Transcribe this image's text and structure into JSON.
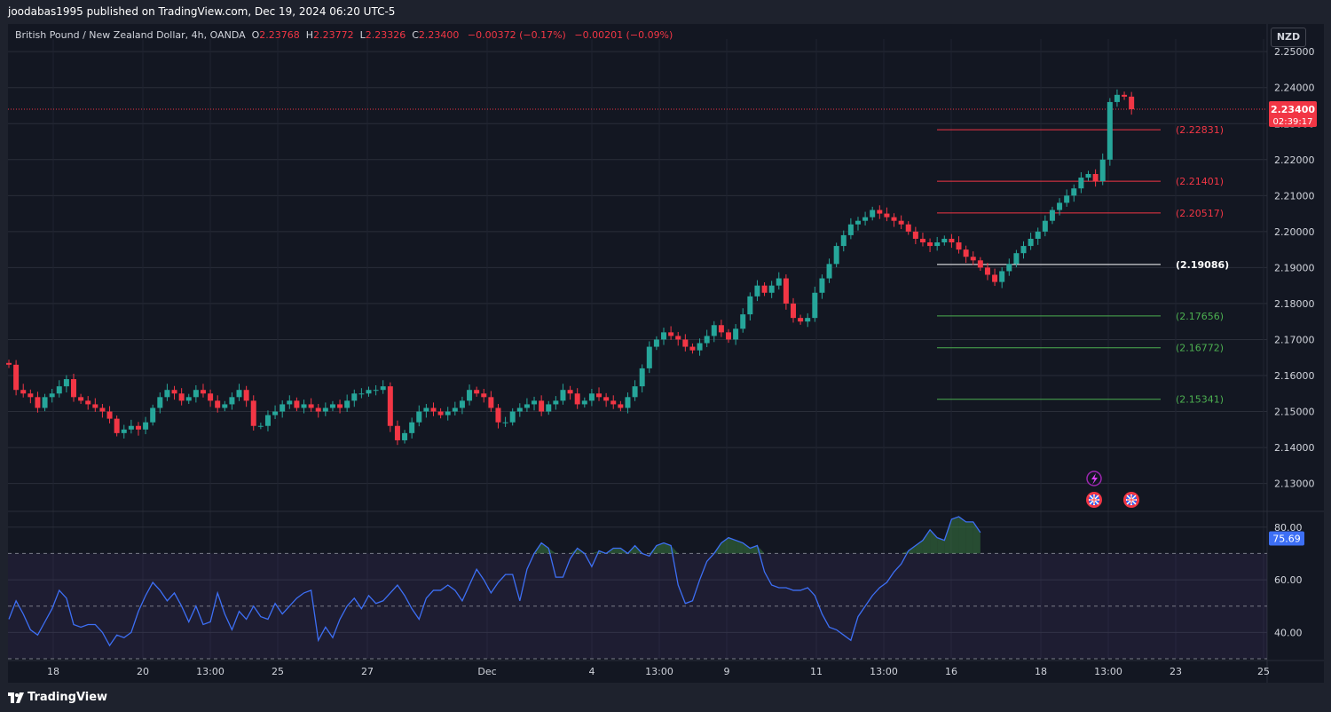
{
  "header": {
    "published_text": "joodabas1995 published on TradingView.com, Dec 19, 2024 06:20 UTC-5"
  },
  "symbol": {
    "name": "British Pound / New Zealand Dollar, 4h, OANDA",
    "open_label": "O",
    "open": "2.23768",
    "high_label": "H",
    "high": "2.23772",
    "low_label": "L",
    "low": "2.23326",
    "close_label": "C",
    "close": "2.23400",
    "change": "−0.00372 (−0.17%)",
    "change2": "−0.00201 (−0.09%)"
  },
  "currency_button": "NZD",
  "footer": {
    "brand": "TradingView"
  },
  "colors": {
    "up": "#26a69a",
    "down": "#f23645",
    "rsi_line": "#3d6ff5",
    "background": "#131722"
  },
  "chart_data": {
    "type": "candlestick",
    "price_axis": {
      "ticks": [
        "2.25000",
        "2.24000",
        "2.23000",
        "2.22000",
        "2.21000",
        "2.20000",
        "2.19000",
        "2.18000",
        "2.17000",
        "2.16000",
        "2.15000",
        "2.14000",
        "2.13000"
      ],
      "range": [
        2.1225,
        2.2535
      ]
    },
    "current_price": {
      "value": "2.23400",
      "countdown": "02:39:17"
    },
    "x_ticks": [
      "18",
      "20",
      "13:00",
      "25",
      "27",
      "Dec",
      "4",
      "13:00",
      "9",
      "11",
      "13:00",
      "16",
      "18",
      "13:00",
      "23",
      "25"
    ],
    "levels": [
      {
        "label": "(2.22831)",
        "value": 2.22831,
        "color": "#f23645"
      },
      {
        "label": "(2.21401)",
        "value": 2.21401,
        "color": "#f23645"
      },
      {
        "label": "(2.20517)",
        "value": 2.20517,
        "color": "#f23645"
      },
      {
        "label": "(2.19086)",
        "value": 2.19086,
        "color": "#ffffff"
      },
      {
        "label": "(2.17656)",
        "value": 2.17656,
        "color": "#4caf50"
      },
      {
        "label": "(2.16772)",
        "value": 2.16772,
        "color": "#4caf50"
      },
      {
        "label": "(2.15341)",
        "value": 2.15341,
        "color": "#4caf50"
      }
    ],
    "close_series": [
      2.163,
      2.156,
      2.155,
      2.154,
      2.151,
      2.154,
      2.155,
      2.157,
      2.159,
      2.154,
      2.153,
      2.152,
      2.151,
      2.15,
      2.148,
      2.144,
      2.145,
      2.146,
      2.145,
      2.147,
      2.151,
      2.154,
      2.156,
      2.155,
      2.153,
      2.154,
      2.156,
      2.155,
      2.153,
      2.151,
      2.152,
      2.154,
      2.156,
      2.153,
      2.146,
      2.146,
      2.149,
      2.15,
      2.152,
      2.153,
      2.151,
      2.152,
      2.151,
      2.15,
      2.151,
      2.152,
      2.151,
      2.153,
      2.155,
      2.155,
      2.156,
      2.156,
      2.157,
      2.146,
      2.142,
      2.144,
      2.147,
      2.15,
      2.151,
      2.15,
      2.149,
      2.15,
      2.151,
      2.153,
      2.156,
      2.155,
      2.154,
      2.151,
      2.147,
      2.147,
      2.15,
      2.151,
      2.152,
      2.153,
      2.15,
      2.152,
      2.153,
      2.156,
      2.155,
      2.152,
      2.153,
      2.155,
      2.154,
      2.153,
      2.152,
      2.151,
      2.154,
      2.157,
      2.162,
      2.168,
      2.17,
      2.172,
      2.171,
      2.17,
      2.168,
      2.167,
      2.169,
      2.171,
      2.174,
      2.172,
      2.17,
      2.173,
      2.177,
      2.182,
      2.185,
      2.183,
      2.185,
      2.187,
      2.18,
      2.176,
      2.175,
      2.176,
      2.183,
      2.187,
      2.191,
      2.196,
      2.199,
      2.202,
      2.203,
      2.204,
      2.206,
      2.205,
      2.204,
      2.203,
      2.202,
      2.2,
      2.198,
      2.197,
      2.196,
      2.197,
      2.198,
      2.197,
      2.195,
      2.193,
      2.192,
      2.19,
      2.188,
      2.186,
      2.189,
      2.191,
      2.194,
      2.196,
      2.198,
      2.2,
      2.203,
      2.206,
      2.208,
      2.21,
      2.212,
      2.215,
      2.216,
      2.214,
      2.22,
      2.236,
      2.238,
      2.2375,
      2.234
    ],
    "rsi": {
      "current": "75.69",
      "ticks": [
        "80.00",
        "60.00",
        "40.00"
      ],
      "range": [
        30,
        86
      ],
      "band": [
        30,
        70
      ],
      "values": [
        45,
        52,
        47,
        41,
        39,
        44,
        49,
        56,
        53,
        43,
        42,
        43,
        43,
        40,
        35,
        39,
        38,
        40,
        48,
        54,
        59,
        56,
        52,
        55,
        50,
        44,
        50,
        43,
        44,
        55,
        47,
        41,
        48,
        45,
        50,
        46,
        45,
        51,
        47,
        50,
        53,
        55,
        56,
        37,
        42,
        38,
        45,
        50,
        53,
        49,
        54,
        51,
        52,
        55,
        58,
        54,
        49,
        45,
        53,
        56,
        56,
        58,
        56,
        52,
        58,
        64,
        60,
        55,
        59,
        62,
        62,
        52,
        64,
        70,
        74,
        72,
        61,
        61,
        68,
        72,
        70,
        65,
        71,
        70,
        72,
        72,
        70,
        73,
        70,
        69,
        73,
        74,
        73,
        58,
        51,
        52,
        60,
        67,
        70,
        74,
        76,
        75,
        74,
        72,
        73,
        63,
        58,
        57,
        57,
        56,
        56,
        57,
        54,
        47,
        42,
        41,
        39,
        37,
        46,
        50,
        54,
        57,
        59,
        63,
        66,
        71,
        73,
        75,
        79,
        76,
        75,
        83,
        84,
        82,
        82,
        78
      ]
    }
  }
}
